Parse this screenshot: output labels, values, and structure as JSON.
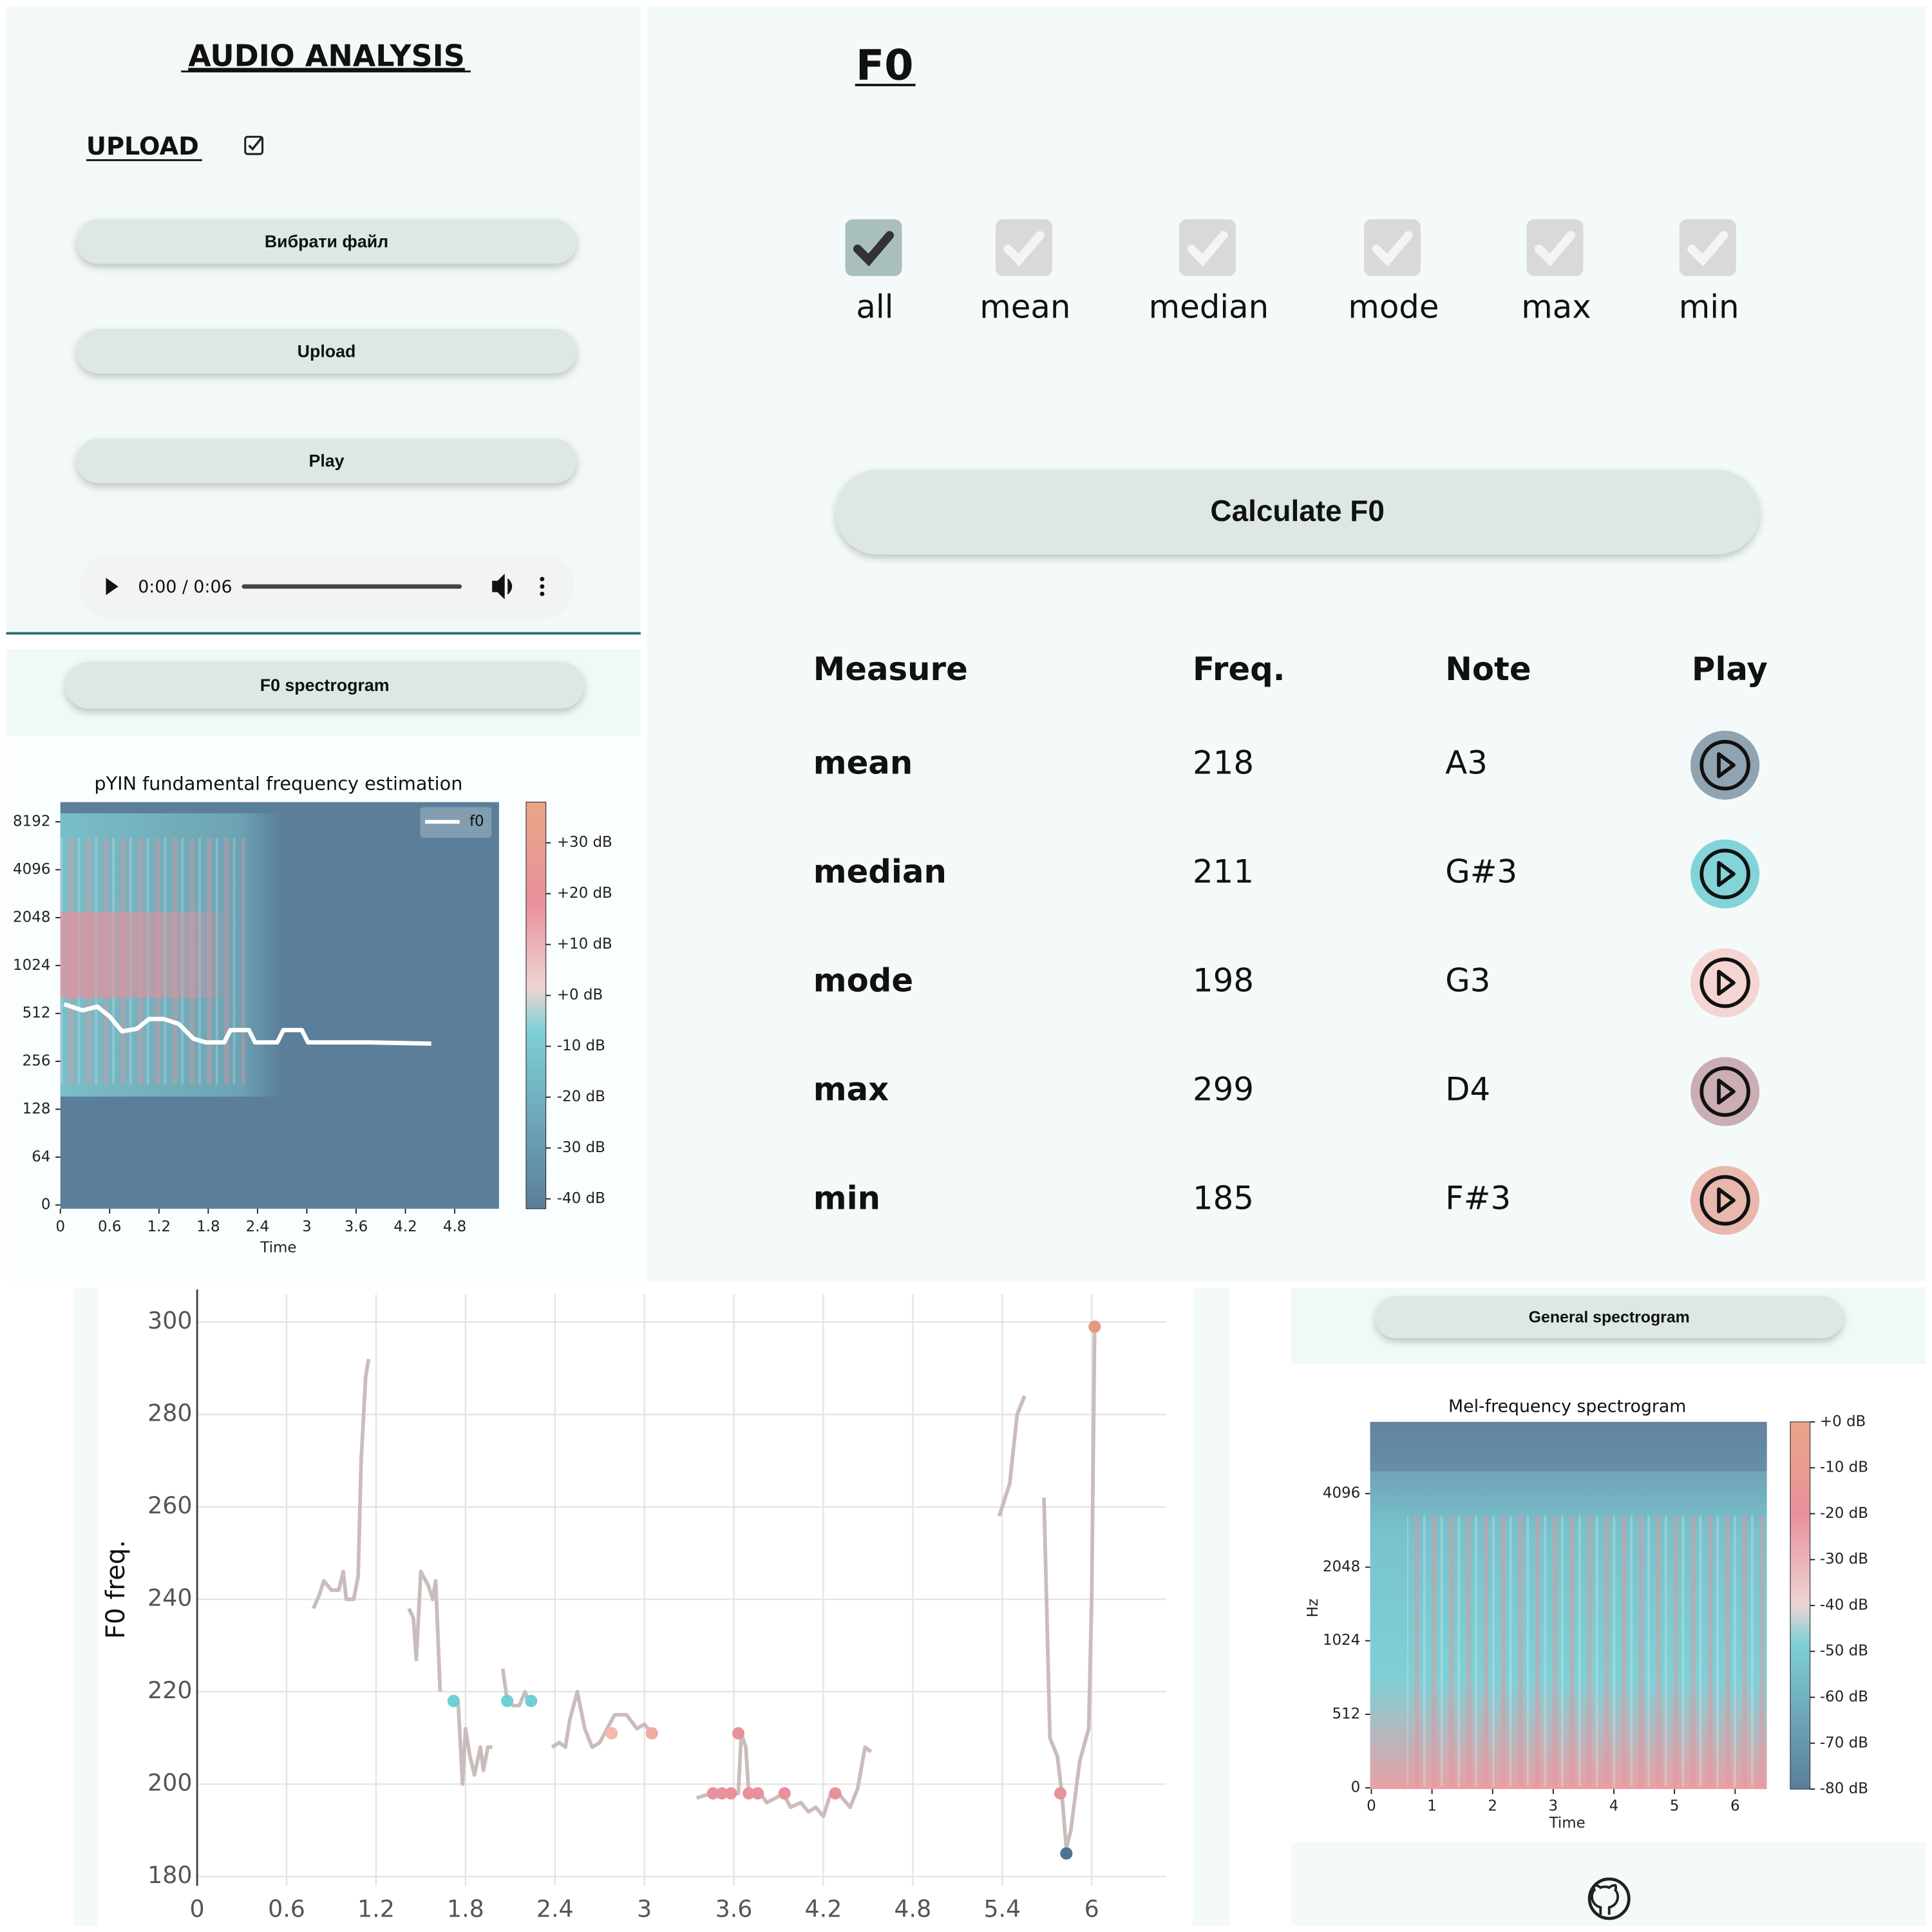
{
  "sidebar": {
    "title": "AUDIO ANALYSIS",
    "upload_label": "UPLOAD",
    "buttons": [
      "Вибрати файл",
      "Upload",
      "Play"
    ],
    "audio_time": "0:00 / 0:06"
  },
  "f0_spectrogram": {
    "button": "F0 spectrogram",
    "title": "pYIN fundamental frequency estimation",
    "legend": "f0",
    "yticks": [
      0,
      64,
      128,
      256,
      512,
      1024,
      2048,
      4096,
      8192
    ],
    "xticks": [
      0,
      0.6,
      1.2,
      1.8,
      2.4,
      3,
      3.6,
      4.2,
      4.8
    ],
    "xlabel": "Time",
    "colorbar": [
      "+30 dB",
      "+20 dB",
      "+10 dB",
      "+0 dB",
      "-10 dB",
      "-20 dB",
      "-30 dB",
      "-40 dB"
    ]
  },
  "f0_panel": {
    "title": "F0",
    "checkboxes": [
      {
        "label": "all",
        "checked": true
      },
      {
        "label": "mean",
        "checked": false
      },
      {
        "label": "median",
        "checked": false
      },
      {
        "label": "mode",
        "checked": false
      },
      {
        "label": "max",
        "checked": false
      },
      {
        "label": "min",
        "checked": false
      }
    ],
    "button": "Calculate F0"
  },
  "table": {
    "header": [
      "Measure",
      "Freq.",
      "Note",
      "Play"
    ],
    "rows": [
      [
        "mean",
        218,
        "A3"
      ],
      [
        "median",
        211,
        "G#3"
      ],
      [
        "mode",
        198,
        "G3"
      ],
      [
        "max",
        299,
        "D4"
      ],
      [
        "min",
        185,
        "F#3"
      ]
    ],
    "play_colors": [
      "#8fa3b1",
      "#82d4d9",
      "#f4d5d1",
      "#cbadb4",
      "#e8b8ad"
    ]
  },
  "general_spectrogram": {
    "button": "General spectrogram",
    "title": "Mel-frequency spectrogram",
    "ylabel": "Hz",
    "yticks": [
      0,
      512,
      1024,
      2048,
      4096
    ],
    "xticks": [
      0,
      1,
      2,
      3,
      4,
      5,
      6
    ],
    "xlabel": "Time",
    "colorbar": [
      "+0 dB",
      "-10 dB",
      "-20 dB",
      "-30 dB",
      "-40 dB",
      "-50 dB",
      "-60 dB",
      "-70 dB",
      "-80 dB"
    ]
  },
  "chart_data": {
    "type": "line",
    "ylabel": "F0 freq.",
    "color": "#cbbcbc",
    "x": [
      0.78,
      0.82,
      0.85,
      0.9,
      0.95,
      0.98,
      1.0,
      1.05,
      1.08,
      1.1,
      1.13,
      1.15,
      1.3,
      1.42,
      1.45,
      1.47,
      1.5,
      1.55,
      1.58,
      1.6,
      1.63,
      1.68,
      1.72,
      1.75,
      1.78,
      1.8,
      1.83,
      1.86,
      1.9,
      1.92,
      1.95,
      1.98,
      2.02,
      2.05,
      2.08,
      2.12,
      2.16,
      2.2,
      2.22,
      2.3,
      2.38,
      2.43,
      2.47,
      2.5,
      2.55,
      2.6,
      2.65,
      2.7,
      2.75,
      2.8,
      2.88,
      2.95,
      3.0,
      3.05,
      3.2,
      3.35,
      3.45,
      3.55,
      3.63,
      3.65,
      3.68,
      3.7,
      3.78,
      3.82,
      3.88,
      3.93,
      3.98,
      4.05,
      4.1,
      4.15,
      4.2,
      4.25,
      4.3,
      4.38,
      4.43,
      4.48,
      4.52,
      5.0,
      5.38,
      5.45,
      5.5,
      5.55,
      5.62,
      5.68,
      5.72,
      5.77,
      5.8,
      5.83,
      5.86,
      5.92,
      5.98,
      6.0,
      6.02
    ],
    "values": [
      238,
      241,
      244,
      242,
      242,
      246,
      240,
      240,
      245,
      270,
      288,
      292,
      null,
      238,
      236,
      227,
      246,
      243,
      240,
      244,
      220,
      null,
      218,
      218,
      200,
      212,
      206,
      202,
      208,
      203,
      208,
      208,
      null,
      225,
      218,
      217,
      217,
      220,
      218,
      null,
      208,
      209,
      208,
      214,
      220,
      212,
      208,
      209,
      212,
      215,
      215,
      212,
      213,
      211,
      null,
      197,
      198,
      198,
      198,
      211,
      208,
      198,
      198,
      196,
      197,
      198,
      195,
      196,
      194,
      195,
      193,
      198,
      198,
      195,
      199,
      208,
      207,
      null,
      258,
      265,
      280,
      284,
      null,
      262,
      210,
      206,
      198,
      186,
      190,
      205,
      212,
      240,
      299
    ],
    "points": {
      "x": [
        1.72,
        2.08,
        2.24,
        2.78,
        3.05,
        3.46,
        3.52,
        3.58,
        3.63,
        3.7,
        3.76,
        3.94,
        4.28,
        5.79,
        5.83,
        6.02
      ],
      "values": [
        218,
        218,
        218,
        211,
        211,
        198,
        198,
        198,
        211,
        198,
        198,
        198,
        198,
        198,
        185,
        299
      ],
      "colors": [
        "#6fcfd6",
        "#6fcfd6",
        "#6fcfd6",
        "#f4b9ad",
        "#f2a9a1",
        "#e8919b",
        "#e8919b",
        "#e8919b",
        "#e8919b",
        "#e8919b",
        "#e8919b",
        "#e8919b",
        "#e8919b",
        "#e8919b",
        "#4f7394",
        "#e59a7e"
      ]
    },
    "xlim": [
      0,
      6.5
    ],
    "ylim": [
      178,
      306
    ],
    "xticks": [
      0,
      0.6,
      1.2,
      1.8,
      2.4,
      3,
      3.6,
      4.2,
      4.8,
      5.4,
      6
    ],
    "yticks": [
      180,
      200,
      220,
      240,
      260,
      280,
      300
    ],
    "grid": true
  }
}
